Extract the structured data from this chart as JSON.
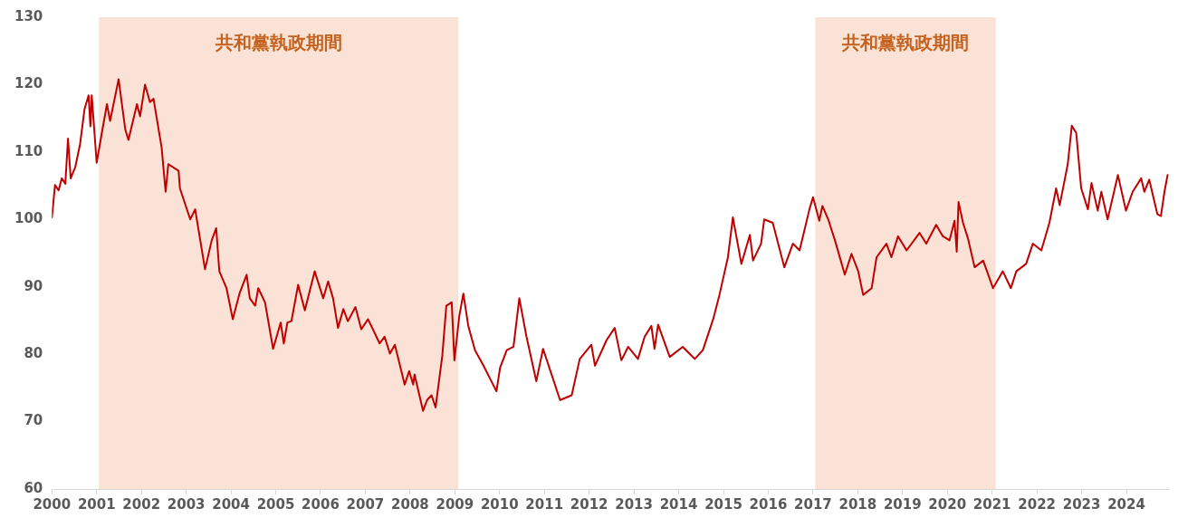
{
  "chart_data": {
    "type": "line",
    "x": [
      2000.0,
      2000.07,
      2000.15,
      2000.22,
      2000.3,
      2000.36,
      2000.42,
      2000.52,
      2000.63,
      2000.73,
      2000.82,
      2000.86,
      2000.89,
      2001.0,
      2001.12,
      2001.23,
      2001.3,
      2001.49,
      2001.64,
      2001.71,
      2001.9,
      2001.97,
      2002.08,
      2002.19,
      2002.27,
      2002.45,
      2002.54,
      2002.6,
      2002.83,
      2002.86,
      2003.09,
      2003.2,
      2003.42,
      2003.57,
      2003.67,
      2003.74,
      2003.9,
      2004.04,
      2004.19,
      2004.35,
      2004.42,
      2004.54,
      2004.61,
      2004.76,
      2004.94,
      2005.11,
      2005.18,
      2005.26,
      2005.35,
      2005.5,
      2005.65,
      2005.87,
      2006.06,
      2006.17,
      2006.28,
      2006.39,
      2006.51,
      2006.61,
      2006.78,
      2006.91,
      2007.06,
      2007.17,
      2007.32,
      2007.43,
      2007.55,
      2007.66,
      2007.88,
      2007.98,
      2008.07,
      2008.1,
      2008.29,
      2008.38,
      2008.48,
      2008.57,
      2008.72,
      2008.81,
      2008.93,
      2008.99,
      2009.1,
      2009.19,
      2009.3,
      2009.45,
      2009.64,
      2009.93,
      2010.01,
      2010.16,
      2010.31,
      2010.44,
      2010.6,
      2010.82,
      2010.97,
      2011.35,
      2011.61,
      2011.79,
      2012.05,
      2012.13,
      2012.39,
      2012.57,
      2012.72,
      2012.87,
      2013.09,
      2013.24,
      2013.39,
      2013.46,
      2013.54,
      2013.8,
      2014.09,
      2014.36,
      2014.54,
      2014.77,
      2014.91,
      2015.1,
      2015.21,
      2015.4,
      2015.59,
      2015.66,
      2015.84,
      2015.91,
      2016.1,
      2016.36,
      2016.55,
      2016.7,
      2016.92,
      2017.0,
      2017.14,
      2017.21,
      2017.34,
      2017.49,
      2017.71,
      2017.86,
      2018.01,
      2018.12,
      2018.31,
      2018.42,
      2018.64,
      2018.75,
      2018.9,
      2019.09,
      2019.38,
      2019.53,
      2019.75,
      2019.9,
      2020.05,
      2020.16,
      2020.21,
      2020.25,
      2020.35,
      2020.46,
      2020.61,
      2020.8,
      2021.02,
      2021.24,
      2021.42,
      2021.54,
      2021.76,
      2021.91,
      2022.1,
      2022.28,
      2022.43,
      2022.51,
      2022.69,
      2022.78,
      2022.88,
      2022.99,
      2023.14,
      2023.22,
      2023.36,
      2023.44,
      2023.58,
      2023.81,
      2023.99,
      2024.14,
      2024.33,
      2024.4,
      2024.51,
      2024.69,
      2024.77,
      2024.85,
      2024.92
    ],
    "series": [
      {
        "color": "#c00000",
        "values": [
          100.3,
          105.1,
          104.3,
          106.1,
          105.3,
          112.0,
          106.1,
          107.7,
          111.2,
          116.4,
          118.4,
          113.8,
          118.4,
          108.4,
          113.0,
          117.1,
          114.6,
          120.8,
          113.3,
          111.8,
          117.1,
          115.3,
          120.0,
          117.4,
          117.9,
          110.7,
          104.1,
          108.2,
          107.2,
          104.6,
          100.0,
          101.5,
          92.6,
          96.9,
          98.7,
          92.3,
          89.8,
          85.2,
          89.0,
          91.8,
          88.3,
          87.2,
          89.8,
          87.7,
          80.8,
          84.7,
          81.6,
          84.7,
          84.9,
          90.3,
          86.5,
          92.3,
          88.3,
          90.8,
          88.3,
          83.9,
          86.7,
          84.9,
          87.0,
          83.7,
          85.2,
          83.7,
          81.6,
          82.6,
          80.1,
          81.4,
          75.5,
          77.5,
          75.5,
          77.0,
          71.6,
          73.2,
          73.9,
          72.1,
          79.8,
          87.2,
          87.7,
          79.1,
          85.7,
          89.0,
          84.2,
          80.6,
          78.3,
          74.5,
          78.0,
          80.6,
          81.1,
          88.3,
          82.6,
          76.0,
          80.8,
          73.2,
          73.9,
          79.3,
          81.4,
          78.3,
          82.1,
          83.9,
          79.1,
          81.1,
          79.3,
          82.6,
          84.2,
          80.8,
          84.4,
          79.6,
          81.1,
          79.3,
          80.6,
          85.2,
          88.8,
          94.4,
          100.3,
          93.4,
          97.7,
          93.9,
          96.4,
          100.0,
          99.5,
          92.9,
          96.4,
          95.4,
          101.5,
          103.3,
          99.8,
          102.0,
          100.0,
          96.9,
          91.8,
          94.9,
          92.3,
          88.8,
          89.8,
          94.4,
          96.4,
          94.4,
          97.5,
          95.4,
          98.0,
          96.4,
          99.2,
          97.5,
          96.9,
          99.8,
          95.2,
          102.6,
          99.5,
          97.2,
          92.9,
          93.9,
          89.8,
          92.3,
          89.8,
          92.3,
          93.4,
          96.4,
          95.4,
          99.5,
          104.6,
          102.1,
          108.2,
          113.9,
          112.8,
          104.6,
          101.5,
          105.4,
          101.3,
          104.1,
          100.0,
          106.6,
          101.3,
          104.1,
          106.1,
          104.1,
          105.9,
          100.8,
          100.5,
          104.1,
          106.6
        ]
      }
    ],
    "xlim": [
      2000,
      2024.95
    ],
    "xticks": [
      2000,
      2001,
      2002,
      2003,
      2004,
      2005,
      2006,
      2007,
      2008,
      2009,
      2010,
      2011,
      2012,
      2013,
      2014,
      2015,
      2016,
      2017,
      2018,
      2019,
      2020,
      2021,
      2022,
      2023,
      2024
    ],
    "ylim": [
      60,
      130
    ],
    "yticks": [
      60,
      70,
      80,
      90,
      100,
      110,
      120,
      130
    ],
    "bands": [
      {
        "axis": "x",
        "from": 2001.05,
        "to": 2009.08,
        "label": "共和黨執政期間",
        "color": "#fae3d6"
      },
      {
        "axis": "x",
        "from": 2017.05,
        "to": 2021.08,
        "label": "共和黨執政期間",
        "color": "#fae3d6"
      }
    ],
    "grid": false,
    "legend": false,
    "marker": "none",
    "line_style": "solid"
  }
}
